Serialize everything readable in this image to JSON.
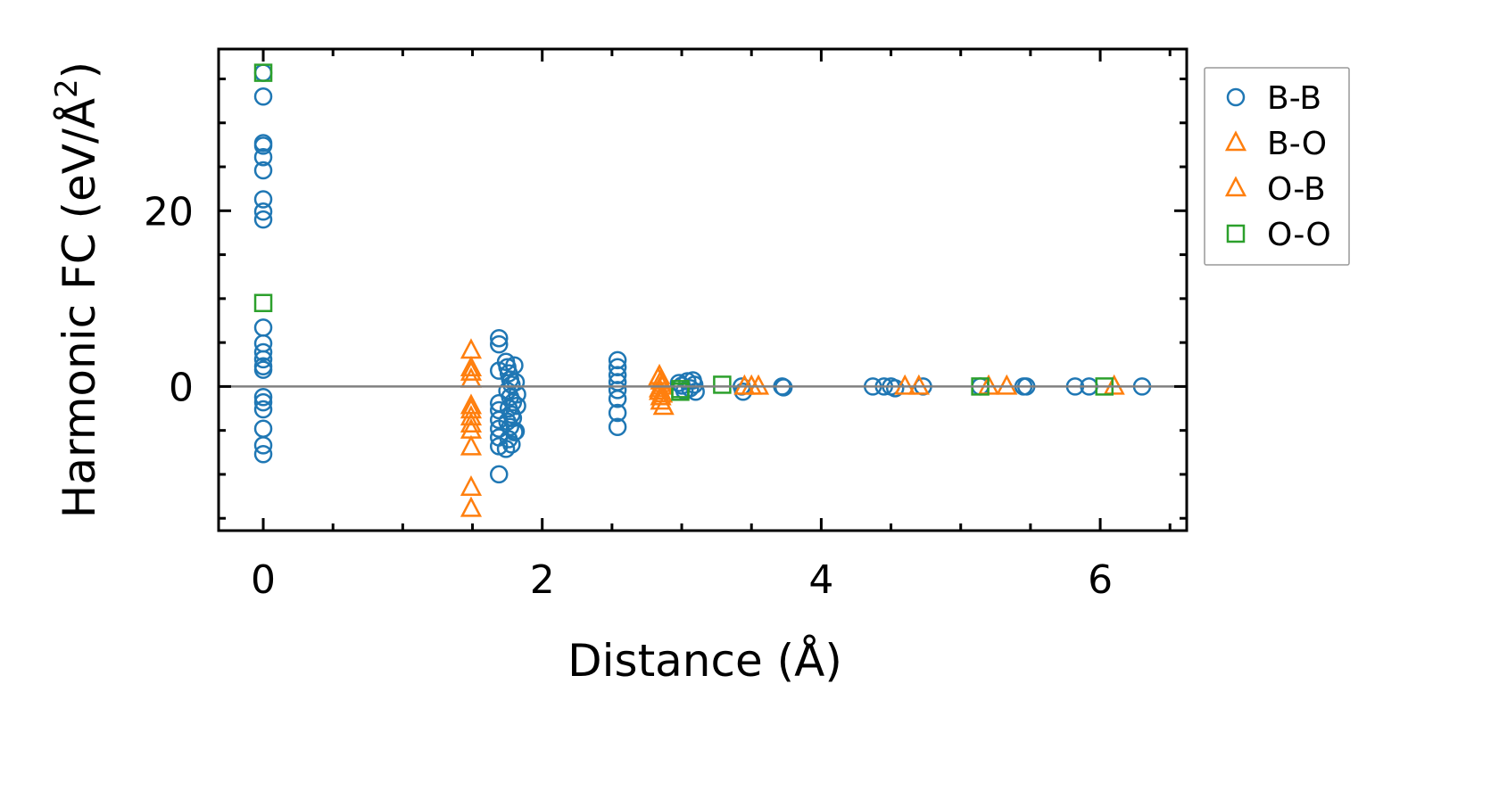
{
  "chart_data": {
    "type": "scatter",
    "xlabel": "Distance (Å)",
    "ylabel": "Harmonic FC (eV/Å",
    "ylabel_sup": "2",
    "ylabel_end": ")",
    "xlim": [
      -0.32,
      6.62
    ],
    "ylim": [
      -16.4,
      38.4
    ],
    "xticks": [
      0,
      2,
      4,
      6
    ],
    "xtick_labels": [
      "0",
      "2",
      "4",
      "6"
    ],
    "xminor_step": 0.5,
    "yticks": [
      0,
      20
    ],
    "ytick_labels": [
      "0",
      "20"
    ],
    "yminor_step": 5,
    "zero_line": 0,
    "legend_position": "outside-right",
    "series": [
      {
        "name": "B-B",
        "marker": "circle",
        "color": "#1f77b4",
        "points": [
          [
            0,
            35.7
          ],
          [
            0,
            33
          ],
          [
            0,
            27.7
          ],
          [
            0,
            27.4
          ],
          [
            0,
            26.1
          ],
          [
            0,
            24.6
          ],
          [
            0,
            21.3
          ],
          [
            0,
            19.9
          ],
          [
            0,
            19
          ],
          [
            0,
            6.7
          ],
          [
            0,
            4.9
          ],
          [
            0,
            3.9
          ],
          [
            0,
            3.1
          ],
          [
            0,
            2.3
          ],
          [
            0,
            1.9
          ],
          [
            0,
            -1.2
          ],
          [
            0,
            -1.8
          ],
          [
            0,
            -2.6
          ],
          [
            0,
            -4.8
          ],
          [
            0,
            -6.7
          ],
          [
            0,
            -7.7
          ],
          [
            1.69,
            5.5
          ],
          [
            1.69,
            4.8
          ],
          [
            1.69,
            1.8
          ],
          [
            1.69,
            -1.9
          ],
          [
            1.69,
            -2.7
          ],
          [
            1.69,
            -3.8
          ],
          [
            1.69,
            -4.8
          ],
          [
            1.69,
            -5.8
          ],
          [
            1.69,
            -6.8
          ],
          [
            1.69,
            -10
          ],
          [
            1.74,
            2.8
          ],
          [
            1.75,
            2.2
          ],
          [
            1.76,
            1.5
          ],
          [
            1.77,
            0.8
          ],
          [
            1.78,
            0.2
          ],
          [
            1.75,
            -0.5
          ],
          [
            1.77,
            -1.2
          ],
          [
            1.79,
            -1.8
          ],
          [
            1.76,
            -2.5
          ],
          [
            1.78,
            -3.2
          ],
          [
            1.75,
            -4
          ],
          [
            1.77,
            -4.6
          ],
          [
            1.8,
            -5.2
          ],
          [
            1.76,
            -6
          ],
          [
            1.78,
            -6.6
          ],
          [
            1.74,
            -7.1
          ],
          [
            1.8,
            2.4
          ],
          [
            1.81,
            0.5
          ],
          [
            1.82,
            -0.9
          ],
          [
            1.82,
            -2.2
          ],
          [
            1.79,
            -3.6
          ],
          [
            1.81,
            -5.1
          ],
          [
            2.54,
            3
          ],
          [
            2.54,
            2.2
          ],
          [
            2.54,
            1.3
          ],
          [
            2.54,
            0.5
          ],
          [
            2.54,
            -0.4
          ],
          [
            2.54,
            -1.4
          ],
          [
            2.54,
            -3
          ],
          [
            2.54,
            -4.6
          ],
          [
            2.98,
            0.4
          ],
          [
            3.0,
            0.1
          ],
          [
            3.02,
            -0.5
          ],
          [
            3.04,
            0.6
          ],
          [
            3.06,
            -0.2
          ],
          [
            3.08,
            0.7
          ],
          [
            3.09,
            0.2
          ],
          [
            3.1,
            -0.6
          ],
          [
            3.43,
            0
          ],
          [
            3.44,
            -0.6
          ],
          [
            3.72,
            0
          ],
          [
            3.73,
            -0.1
          ],
          [
            4.37,
            0
          ],
          [
            4.45,
            0
          ],
          [
            4.5,
            0
          ],
          [
            4.53,
            -0.2
          ],
          [
            4.73,
            0
          ],
          [
            5.14,
            0
          ],
          [
            5.45,
            0
          ],
          [
            5.47,
            0
          ],
          [
            5.82,
            0
          ],
          [
            5.92,
            0
          ],
          [
            6.3,
            0
          ]
        ]
      },
      {
        "name": "B-O",
        "marker": "triangle",
        "color": "#ff7f0e",
        "points": [
          [
            1.49,
            4.1
          ],
          [
            1.49,
            2.1
          ],
          [
            1.49,
            0.8
          ],
          [
            1.49,
            -2.2
          ],
          [
            1.49,
            -3.5
          ],
          [
            1.49,
            -5
          ],
          [
            1.49,
            -11.5
          ],
          [
            2.84,
            1.2
          ],
          [
            2.85,
            0.6
          ],
          [
            2.86,
            0
          ],
          [
            2.84,
            -0.6
          ],
          [
            2.85,
            -1.2
          ],
          [
            2.87,
            -2.3
          ],
          [
            3.45,
            0
          ],
          [
            3.55,
            0
          ],
          [
            4.6,
            0
          ],
          [
            5.2,
            0
          ],
          [
            6.1,
            0
          ]
        ]
      },
      {
        "name": "O-B",
        "marker": "triangle",
        "color": "#ff7f0e",
        "points": [
          [
            1.49,
            1.6
          ],
          [
            1.49,
            -2.7
          ],
          [
            1.49,
            -4.3
          ],
          [
            1.49,
            -6.9
          ],
          [
            1.49,
            -13.9
          ],
          [
            2.83,
            0.9
          ],
          [
            2.86,
            0.3
          ],
          [
            2.84,
            -0.3
          ],
          [
            2.86,
            -0.9
          ],
          [
            2.85,
            -1.7
          ],
          [
            3.5,
            0
          ],
          [
            4.7,
            0
          ],
          [
            5.33,
            0
          ]
        ]
      },
      {
        "name": "O-O",
        "marker": "square",
        "color": "#2ca02c",
        "points": [
          [
            0,
            35.7
          ],
          [
            0,
            9.5
          ],
          [
            2.99,
            -0.3
          ],
          [
            2.99,
            -0.6
          ],
          [
            3.29,
            0.2
          ],
          [
            5.14,
            0
          ],
          [
            6.03,
            0
          ]
        ]
      }
    ]
  }
}
